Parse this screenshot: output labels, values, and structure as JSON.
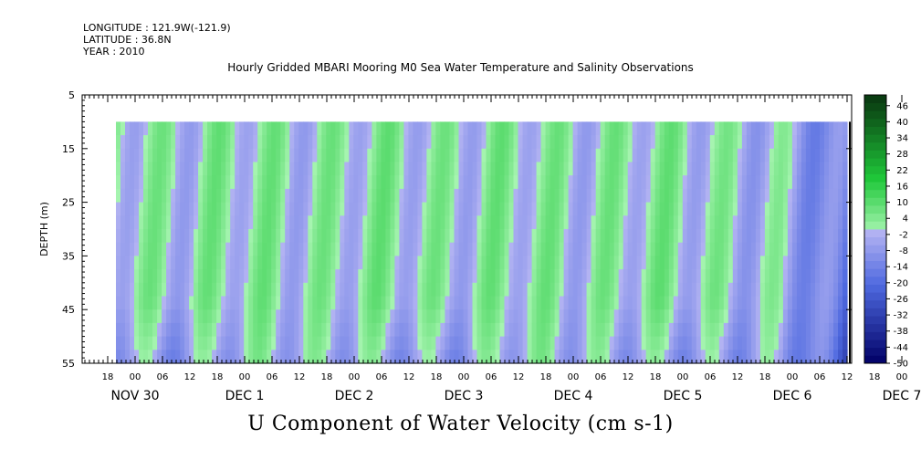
{
  "header": {
    "longitude": "LONGITUDE : 121.9W(-121.9)",
    "latitude": "LATITUDE : 36.8N",
    "year": "YEAR : 2010"
  },
  "chart_data": {
    "type": "heatmap",
    "title": "Hourly Gridded MBARI Mooring M0 Sea Water Temperature and Salinity Observations",
    "xlabel": "U Component of Water Velocity (cm s-1)",
    "ylabel": "DEPTH (m)",
    "y_ticks": [
      5,
      15,
      25,
      35,
      45,
      55
    ],
    "ylim": [
      55,
      5
    ],
    "data_depth_range": [
      10,
      55
    ],
    "hour_ticks": [
      "18",
      "00",
      "06",
      "12",
      "18",
      "00",
      "06",
      "12",
      "18",
      "00",
      "06",
      "12",
      "18",
      "00",
      "06",
      "12",
      "18",
      "00",
      "06",
      "12",
      "18",
      "00",
      "06",
      "12",
      "18",
      "00",
      "06",
      "12",
      "18",
      "00",
      "06",
      "12"
    ],
    "day_labels": [
      "NOV 30",
      "DEC  1",
      "DEC  2",
      "DEC  3",
      "DEC  4",
      "DEC  5",
      "DEC  6",
      "DEC  7"
    ],
    "colorbar_levels": [
      "46",
      "40",
      "34",
      "28",
      "22",
      "16",
      "10",
      "4",
      "-2",
      "-8",
      "-14",
      "-20",
      "-26",
      "-32",
      "-38",
      "-44",
      "-50"
    ],
    "colorbar_range": [
      -50,
      50
    ],
    "colorbar_step": 3,
    "colors": {
      "positive_dark": "#0a3d12",
      "positive_mid": "#1fc83a",
      "positive_light": "#a6f4b0",
      "negative_light": "#b3b3f2",
      "negative_mid": "#4f6ae0",
      "negative_dark": "#000066"
    },
    "description_profile": {
      "column_mean_u_by_period": "alternating green (positive, ~+4 to +20) and lavender/blue (negative, ~-2 to -20) bands with a semi-diurnal tidal pattern; strongest negative values (~-30) near DEC 6 18–DEC 7 00 at depth"
    }
  }
}
